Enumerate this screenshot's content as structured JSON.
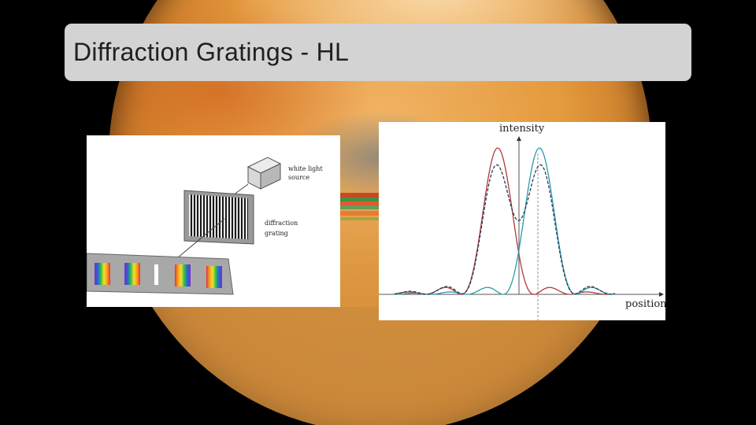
{
  "slide": {
    "title": "Diffraction Gratings - HL"
  },
  "grating_figure": {
    "source_label_line1": "white light",
    "source_label_line2": "source",
    "grating_label_line1": "diffraction",
    "grating_label_line2": "grating"
  },
  "intensity_figure": {
    "y_axis_label": "intensity",
    "x_axis_label": "position",
    "colors": {
      "left_peak": "#b03a3a",
      "right_peak": "#2a9aa8",
      "sum": "#2b3a55"
    }
  }
}
